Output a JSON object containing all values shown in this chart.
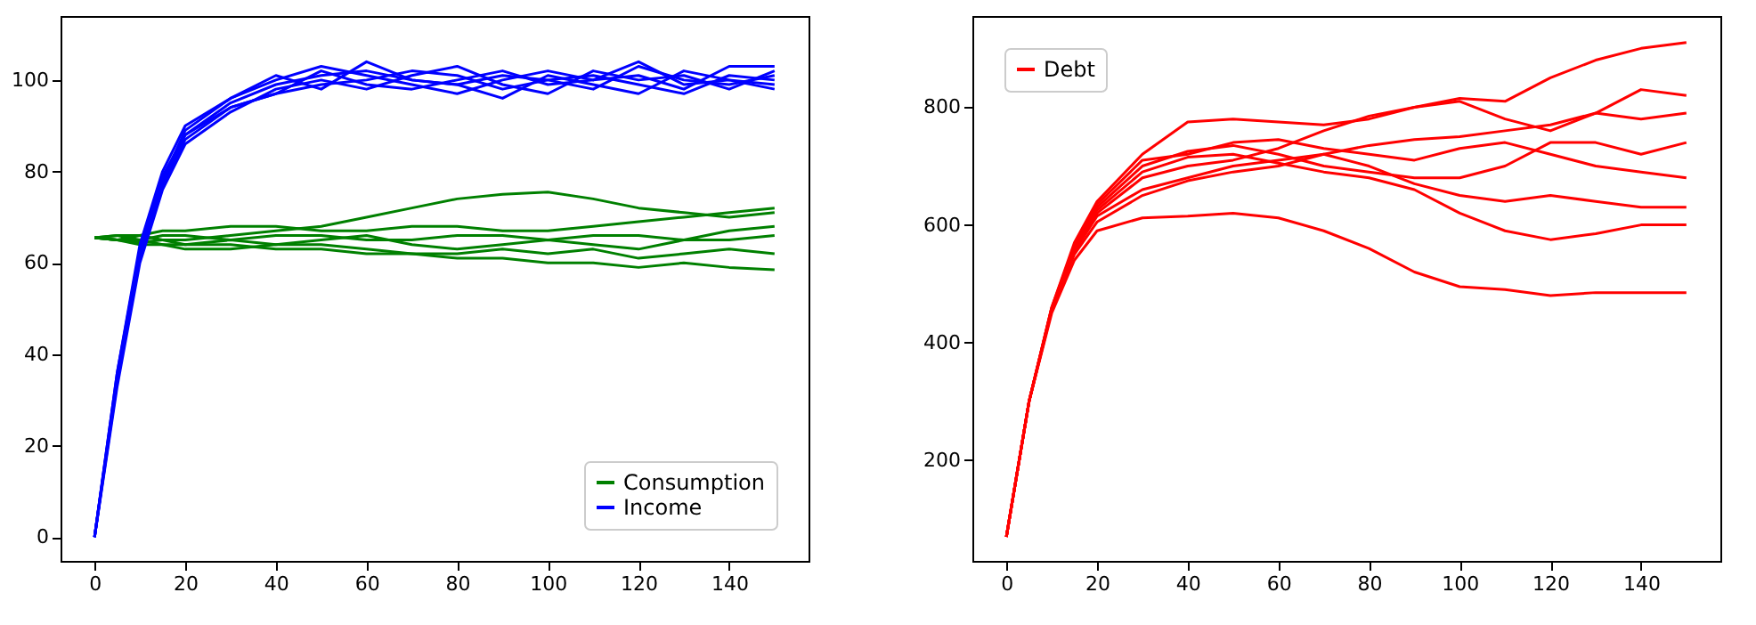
{
  "chart_data": [
    {
      "type": "line",
      "x": [
        0,
        5,
        10,
        15,
        20,
        30,
        40,
        50,
        60,
        70,
        80,
        90,
        100,
        110,
        120,
        130,
        140,
        150
      ],
      "xlim": [
        -7.5,
        157.5
      ],
      "xticks": [
        0,
        20,
        40,
        60,
        80,
        100,
        120,
        140
      ],
      "ylim": [
        -5.2,
        114
      ],
      "yticks": [
        0,
        20,
        40,
        60,
        80,
        100
      ],
      "grid": false,
      "legend": "bottom right",
      "marker": "none",
      "line_style": "solid",
      "series": [
        {
          "name": "Consumption",
          "color": "#008000",
          "values": [
            65.5,
            65,
            64.5,
            65,
            65,
            66,
            67,
            68,
            70,
            72,
            74,
            75,
            75.5,
            74,
            72,
            71,
            70,
            71
          ]
        },
        {
          "color": "#008000",
          "values": [
            65.5,
            66,
            66,
            65,
            64,
            64,
            63,
            63,
            62,
            62,
            61,
            61,
            60,
            60,
            59,
            60,
            59,
            58.5
          ]
        },
        {
          "color": "#008000",
          "values": [
            65.5,
            65,
            66,
            67,
            67,
            68,
            68,
            67,
            67,
            68,
            68,
            67,
            67,
            68,
            69,
            70,
            71,
            72
          ]
        },
        {
          "color": "#008000",
          "values": [
            65.5,
            65,
            64,
            64,
            63,
            63,
            64,
            64,
            63,
            62,
            62,
            63,
            62,
            63,
            61,
            62,
            63,
            62
          ]
        },
        {
          "color": "#008000",
          "values": [
            65.5,
            66,
            65,
            66,
            66,
            65,
            66,
            66,
            65,
            65,
            66,
            66,
            65,
            66,
            66,
            65,
            65,
            66
          ]
        },
        {
          "color": "#008000",
          "values": [
            65.5,
            65,
            65,
            64,
            64,
            65,
            64,
            65,
            66,
            64,
            63,
            64,
            65,
            64,
            63,
            65,
            67,
            68
          ]
        },
        {
          "name": "Income",
          "color": "#0000ff",
          "values": [
            0,
            36,
            63,
            79,
            88,
            95,
            99,
            101,
            102,
            100,
            99,
            101,
            100,
            98,
            103,
            100,
            99,
            101
          ]
        },
        {
          "color": "#0000ff",
          "values": [
            0,
            34,
            61,
            77,
            87,
            94,
            97,
            99,
            100,
            102,
            101,
            98,
            100,
            101,
            99,
            97,
            101,
            100
          ]
        },
        {
          "color": "#0000ff",
          "values": [
            0,
            35,
            62,
            78,
            89,
            96,
            100,
            103,
            101,
            99,
            97,
            100,
            102,
            100,
            104,
            99,
            100,
            98
          ]
        },
        {
          "color": "#0000ff",
          "values": [
            0,
            33,
            60,
            76,
            86,
            93,
            98,
            100,
            98,
            101,
            103,
            99,
            97,
            102,
            100,
            101,
            98,
            102
          ]
        },
        {
          "color": "#0000ff",
          "values": [
            0,
            36,
            64,
            80,
            90,
            96,
            101,
            98,
            104,
            100,
            99,
            96,
            101,
            99,
            97,
            102,
            100,
            99
          ]
        },
        {
          "color": "#0000ff",
          "values": [
            0,
            35,
            62,
            78,
            88,
            94,
            97,
            102,
            99,
            98,
            100,
            102,
            99,
            100,
            101,
            98,
            103,
            103
          ]
        }
      ]
    },
    {
      "type": "line",
      "x": [
        0,
        5,
        10,
        15,
        20,
        30,
        40,
        50,
        60,
        70,
        80,
        90,
        100,
        110,
        120,
        130,
        140,
        150
      ],
      "xlim": [
        -7.5,
        157.5
      ],
      "xticks": [
        0,
        20,
        40,
        60,
        80,
        100,
        120,
        140
      ],
      "ylim": [
        29,
        955
      ],
      "yticks": [
        200,
        400,
        600,
        800
      ],
      "grid": false,
      "legend": "top left",
      "marker": "none",
      "line_style": "solid",
      "series": [
        {
          "name": "Debt",
          "color": "#ff0000",
          "values": [
            70,
            300,
            460,
            570,
            640,
            720,
            775,
            780,
            775,
            770,
            780,
            800,
            815,
            810,
            850,
            880,
            900,
            910
          ]
        },
        {
          "color": "#ff0000",
          "values": [
            70,
            300,
            450,
            540,
            590,
            612,
            615,
            620,
            612,
            590,
            560,
            520,
            495,
            490,
            480,
            485,
            485,
            485
          ]
        },
        {
          "color": "#ff0000",
          "values": [
            70,
            300,
            455,
            550,
            605,
            650,
            675,
            690,
            700,
            720,
            735,
            745,
            750,
            760,
            770,
            790,
            780,
            790
          ]
        },
        {
          "color": "#ff0000",
          "values": [
            70,
            300,
            458,
            560,
            625,
            690,
            715,
            720,
            705,
            690,
            680,
            660,
            620,
            590,
            575,
            585,
            600,
            600
          ]
        },
        {
          "color": "#ff0000",
          "values": [
            70,
            300,
            460,
            565,
            630,
            700,
            725,
            735,
            720,
            700,
            690,
            680,
            680,
            700,
            740,
            740,
            720,
            740
          ]
        },
        {
          "color": "#ff0000",
          "values": [
            70,
            300,
            455,
            555,
            615,
            660,
            680,
            700,
            710,
            720,
            700,
            670,
            650,
            640,
            650,
            640,
            630,
            630
          ]
        },
        {
          "color": "#ff0000",
          "values": [
            70,
            300,
            458,
            562,
            635,
            710,
            720,
            740,
            745,
            730,
            720,
            710,
            730,
            740,
            720,
            700,
            690,
            680
          ]
        },
        {
          "color": "#ff0000",
          "values": [
            70,
            300,
            456,
            558,
            620,
            680,
            700,
            710,
            730,
            760,
            785,
            800,
            810,
            780,
            760,
            790,
            830,
            820
          ]
        }
      ]
    }
  ]
}
